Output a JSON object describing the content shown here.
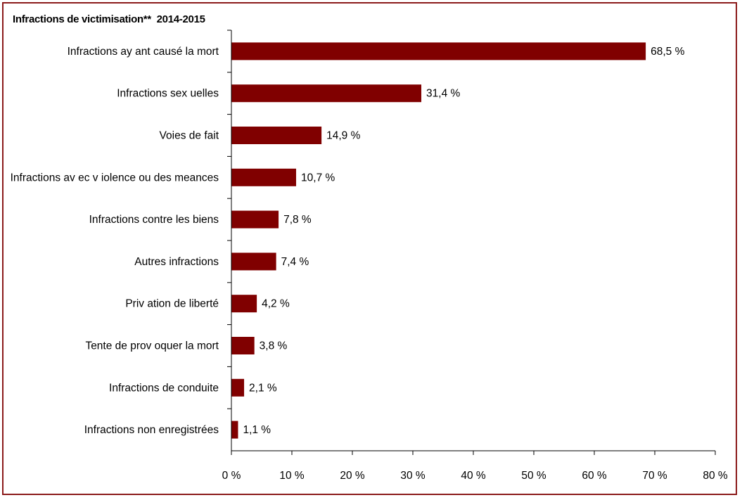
{
  "chart_data": {
    "type": "bar",
    "orientation": "horizontal",
    "title": "Infractions de victimisation**  2014-2015",
    "categories": [
      "Infractions ay ant causé la mort",
      "Infractions sex uelles",
      "Voies de fait",
      "Infractions av ec v iolence ou des meances",
      "Infractions contre les biens",
      "Autres infractions",
      "Priv ation de liberté",
      "Tente de prov oquer la mort",
      "Infractions de conduite",
      "Infractions non enregistrées"
    ],
    "values": [
      68.5,
      31.4,
      14.9,
      10.7,
      7.8,
      7.4,
      4.2,
      3.8,
      2.1,
      1.1
    ],
    "value_labels": [
      "68,5 %",
      "31,4 %",
      "14,9 %",
      "10,7 %",
      "7,8 %",
      "7,4 %",
      "4,2 %",
      "3,8 %",
      "2,1 %",
      "1,1 %"
    ],
    "xlim": [
      0,
      80
    ],
    "x_ticks": [
      0,
      10,
      20,
      30,
      40,
      50,
      60,
      70,
      80
    ],
    "x_tick_labels": [
      "0 %",
      "10 %",
      "20 %",
      "30 %",
      "40 %",
      "50 %",
      "60 %",
      "70 %",
      "80 %"
    ],
    "grid": false,
    "bar_color": "#800000",
    "frame_color": "#8b1a1a"
  }
}
